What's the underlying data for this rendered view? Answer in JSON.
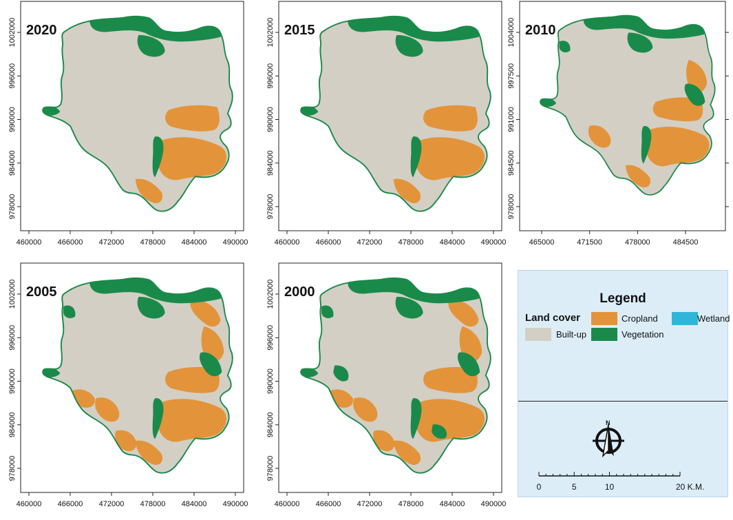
{
  "colors": {
    "built_up": "#d3cfc4",
    "cropland": "#e3943a",
    "vegetation": "#1a8a4a",
    "wetland": "#2fb6d8",
    "legend_bg": "#dcedf8"
  },
  "maps": [
    {
      "year": "2020",
      "x_ticks": [
        "460000",
        "466000",
        "472000",
        "478000",
        "484000",
        "490000"
      ],
      "y_ticks": [
        "1002000",
        "996000",
        "990000",
        "984000",
        "978000"
      ],
      "cropland_level": 0.35,
      "vegetation_level": 0.35
    },
    {
      "year": "2015",
      "x_ticks": [
        "460000",
        "466000",
        "472000",
        "478000",
        "484000",
        "490000"
      ],
      "y_ticks": [
        "1002000",
        "996000",
        "990000",
        "984000",
        "978000"
      ],
      "cropland_level": 0.4,
      "vegetation_level": 0.4
    },
    {
      "year": "2010",
      "x_ticks": [
        "465000",
        "471500",
        "478000",
        "484500"
      ],
      "y_ticks": [
        "1004000",
        "997500",
        "991000",
        "984500",
        "978000"
      ],
      "cropland_level": 0.5,
      "vegetation_level": 0.5
    },
    {
      "year": "2005",
      "x_ticks": [
        "460000",
        "466000",
        "472000",
        "478000",
        "484000",
        "490000"
      ],
      "y_ticks": [
        "1002000",
        "996000",
        "990000",
        "984000",
        "978000"
      ],
      "cropland_level": 0.7,
      "vegetation_level": 0.6
    },
    {
      "year": "2000",
      "x_ticks": [
        "460000",
        "466000",
        "472000",
        "478000",
        "484000",
        "490000"
      ],
      "y_ticks": [
        "1002000",
        "996000",
        "990000",
        "984000",
        "978000"
      ],
      "cropland_level": 0.75,
      "vegetation_level": 0.65
    }
  ],
  "legend": {
    "title": "Legend",
    "group_label": "Land cover",
    "items": [
      {
        "label": "Cropland",
        "color": "#e3943a"
      },
      {
        "label": "Wetland",
        "color": "#2fb6d8"
      },
      {
        "label": "Built-up",
        "color": "#d3cfc4"
      },
      {
        "label": "Vegetation",
        "color": "#1a8a4a"
      }
    ]
  },
  "scale_bar": {
    "labels": [
      "0",
      "5",
      "10",
      "20 K.M."
    ],
    "km_values": [
      0,
      5,
      10,
      20
    ]
  }
}
